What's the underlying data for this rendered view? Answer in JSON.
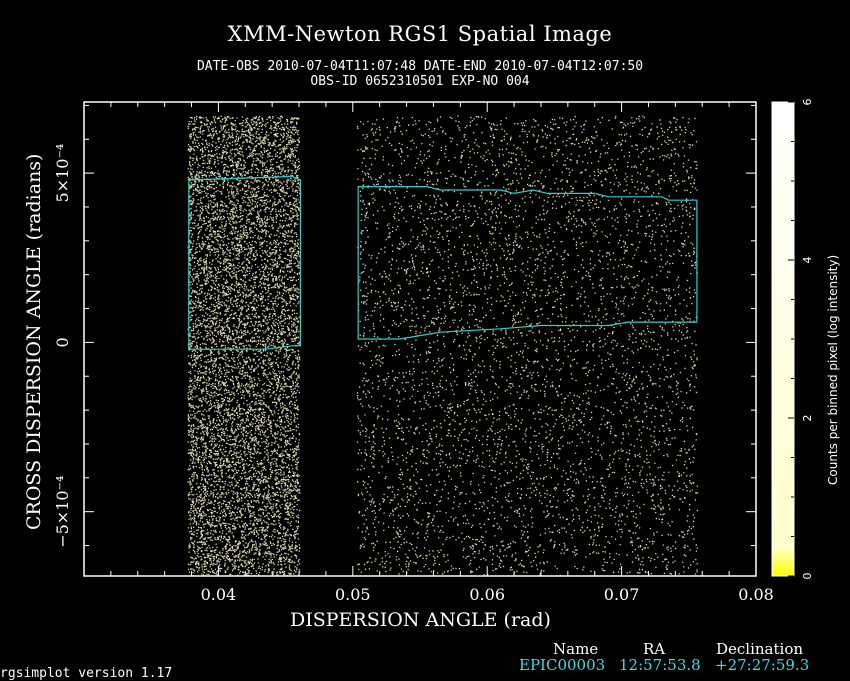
{
  "chart_data": {
    "type": "heatmap",
    "title": "XMM-Newton  RGS1 Spatial Image",
    "subtitle_line1": "DATE-OBS 2010-07-04T11:07:48   DATE-END 2010-07-04T12:07:50",
    "subtitle_line2": "OBS-ID 0652310501 EXP-NO 004",
    "xlabel": "DISPERSION ANGLE (rad)",
    "ylabel": "CROSS DISPERSION ANGLE (radians)",
    "xlim": [
      0.03,
      0.08
    ],
    "ylim": [
      -0.00069,
      0.00071
    ],
    "x_ticks": [
      {
        "value": 0.04,
        "label": "0.04"
      },
      {
        "value": 0.05,
        "label": "0.05"
      },
      {
        "value": 0.06,
        "label": "0.06"
      },
      {
        "value": 0.07,
        "label": "0.07"
      },
      {
        "value": 0.08,
        "label": "0.08"
      }
    ],
    "y_ticks": [
      {
        "value": -0.0005,
        "label": "−5×10⁻⁴"
      },
      {
        "value": 0,
        "label": "0"
      },
      {
        "value": 0.0005,
        "label": "5×10⁻⁴"
      }
    ],
    "event_regions": [
      {
        "x": [
          0.0377,
          0.046
        ],
        "y": [
          -0.00069,
          0.00067
        ]
      },
      {
        "x": [
          0.0503,
          0.0756
        ],
        "y": [
          -0.00069,
          0.00067
        ]
      }
    ],
    "selection_regions": [
      {
        "name": "region-1",
        "outline": [
          [
            0.0378,
            0.00048
          ],
          [
            0.0455,
            0.00049
          ],
          [
            0.0461,
            0.00048
          ],
          [
            0.0461,
            -1e-05
          ],
          [
            0.0455,
            -1e-05
          ],
          [
            0.0435,
            -2e-05
          ],
          [
            0.0378,
            -2e-05
          ]
        ]
      },
      {
        "name": "region-2",
        "outline": [
          [
            0.0504,
            0.00046
          ],
          [
            0.0555,
            0.00046
          ],
          [
            0.0565,
            0.00045
          ],
          [
            0.061,
            0.00045
          ],
          [
            0.062,
            0.00044
          ],
          [
            0.0634,
            0.00045
          ],
          [
            0.0645,
            0.00044
          ],
          [
            0.068,
            0.00044
          ],
          [
            0.069,
            0.00043
          ],
          [
            0.073,
            0.00043
          ],
          [
            0.0735,
            0.00042
          ],
          [
            0.0756,
            0.00042
          ],
          [
            0.0756,
            6e-05
          ],
          [
            0.0705,
            6e-05
          ],
          [
            0.069,
            5e-05
          ],
          [
            0.064,
            5e-05
          ],
          [
            0.061,
            4e-05
          ],
          [
            0.0565,
            3e-05
          ],
          [
            0.055,
            2e-05
          ],
          [
            0.0535,
            1e-05
          ],
          [
            0.0504,
            1e-05
          ]
        ]
      }
    ],
    "colorbar": {
      "label": "Counts per binned pixel (log intensity)",
      "range": [
        0,
        6
      ],
      "ticks": [
        {
          "value": 0,
          "label": "0"
        },
        {
          "value": 2,
          "label": "2"
        },
        {
          "value": 4,
          "label": "4"
        },
        {
          "value": 6,
          "label": "6"
        }
      ],
      "color_low": "#ffff00",
      "color_high": "#ffffff"
    },
    "colors": {
      "background": "#000000",
      "frame": "#ffffff",
      "region_outline": "#33cccc",
      "events": "#ffffcc"
    }
  },
  "source_table": {
    "headers": {
      "name": "Name",
      "ra": "RA",
      "dec": "Declination"
    },
    "rows": [
      {
        "name": "EPIC00003",
        "ra": "12:57:53.8",
        "dec": "+27:27:59.3"
      }
    ]
  },
  "footer": {
    "version": "rgsimplot version 1.17"
  }
}
